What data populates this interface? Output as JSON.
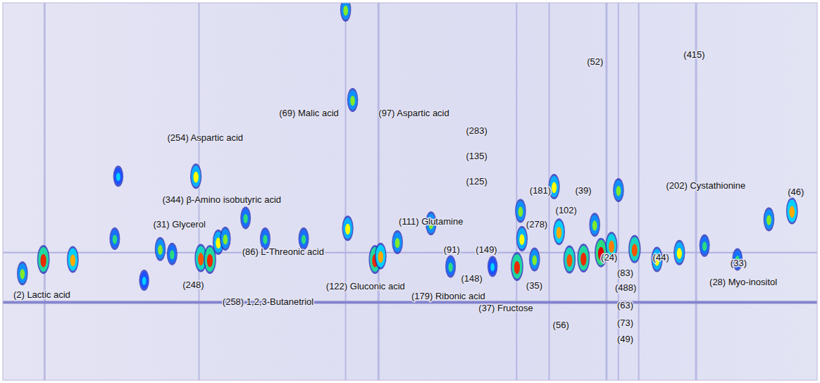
{
  "chart_data": {
    "type": "scatter",
    "tick_labels": false,
    "grid": false,
    "xlim": [
      0,
      1164
    ],
    "ylim": [
      544,
      0
    ],
    "zlim": [
      0,
      1
    ],
    "x": [
      58,
      100,
      28,
      160,
      202,
      225,
      242,
      283,
      296,
      308,
      318,
      276,
      347,
      375,
      430,
      493,
      500,
      490,
      532,
      540,
      564,
      612,
      735,
      742,
      740,
      788,
      795,
      810,
      830,
      846,
      855,
      870,
      880,
      903,
      935,
      967,
      1003,
      1050,
      1095,
      1128,
      165,
      640,
      700,
      760
    ],
    "values": [
      370,
      370,
      390,
      340,
      400,
      355,
      362,
      368,
      370,
      345,
      340,
      250,
      310,
      340,
      340,
      325,
      140,
      10,
      370,
      365,
      345,
      318,
      380,
      340,
      300,
      265,
      330,
      370,
      368,
      320,
      360,
      350,
      270,
      355,
      370,
      360,
      350,
      370,
      312,
      300,
      250,
      380,
      380,
      370
    ],
    "intensity": [
      0.95,
      0.8,
      0.6,
      0.5,
      0.4,
      0.6,
      0.5,
      0.9,
      0.95,
      0.7,
      0.6,
      0.7,
      0.5,
      0.5,
      0.5,
      0.7,
      0.6,
      0.6,
      0.95,
      0.8,
      0.6,
      0.6,
      0.95,
      0.7,
      0.6,
      0.7,
      0.8,
      0.9,
      0.95,
      0.6,
      1.0,
      0.85,
      0.6,
      0.9,
      0.7,
      0.7,
      0.5,
      0.5,
      0.6,
      0.8,
      0.4,
      0.5,
      0.4,
      0.6
    ],
    "annotations": [
      {
        "text": "(2) Lactic acid",
        "x": 15,
        "y": 422
      },
      {
        "text": "(31) Glycerol",
        "x": 215,
        "y": 320
      },
      {
        "text": "(254) Aspartic acid",
        "x": 235,
        "y": 195
      },
      {
        "text": "(344) β-Amino isobutyric acid",
        "x": 228,
        "y": 285
      },
      {
        "text": "(248)",
        "x": 257,
        "y": 408
      },
      {
        "text": "(258) 1,2,3-Butanetriol",
        "x": 314,
        "y": 432
      },
      {
        "text": "(86) L-Threonic acid",
        "x": 342,
        "y": 360
      },
      {
        "text": "(69) Malic acid",
        "x": 395,
        "y": 160
      },
      {
        "text": "(97) Aspartic acid",
        "x": 537,
        "y": 160
      },
      {
        "text": "(111) Glutamine",
        "x": 566,
        "y": 316
      },
      {
        "text": "(122) Gluconic acid",
        "x": 462,
        "y": 410
      },
      {
        "text": "(91)",
        "x": 630,
        "y": 357
      },
      {
        "text": "(149)",
        "x": 676,
        "y": 357
      },
      {
        "text": "(148)",
        "x": 655,
        "y": 398
      },
      {
        "text": "(179) Ribonic acid",
        "x": 584,
        "y": 424
      },
      {
        "text": "(283)",
        "x": 662,
        "y": 185
      },
      {
        "text": "(135)",
        "x": 662,
        "y": 222
      },
      {
        "text": "(125)",
        "x": 662,
        "y": 258
      },
      {
        "text": "(181)",
        "x": 753,
        "y": 272
      },
      {
        "text": "(39)",
        "x": 818,
        "y": 272
      },
      {
        "text": "(102)",
        "x": 790,
        "y": 300
      },
      {
        "text": "(278)",
        "x": 748,
        "y": 320
      },
      {
        "text": "(35)",
        "x": 748,
        "y": 409
      },
      {
        "text": "(37) Fructose",
        "x": 680,
        "y": 441
      },
      {
        "text": "(56)",
        "x": 786,
        "y": 465
      },
      {
        "text": "(52)",
        "x": 835,
        "y": 86
      },
      {
        "text": "(415)",
        "x": 973,
        "y": 76
      },
      {
        "text": "(24)",
        "x": 855,
        "y": 368
      },
      {
        "text": "(83)",
        "x": 878,
        "y": 390
      },
      {
        "text": "(488)",
        "x": 875,
        "y": 412
      },
      {
        "text": "(63)",
        "x": 878,
        "y": 437
      },
      {
        "text": "(73)",
        "x": 878,
        "y": 462
      },
      {
        "text": "(49)",
        "x": 878,
        "y": 486
      },
      {
        "text": "(202) Cystathionine",
        "x": 948,
        "y": 264
      },
      {
        "text": "(46)",
        "x": 1122,
        "y": 274
      },
      {
        "text": "(44)",
        "x": 929,
        "y": 368
      },
      {
        "text": "(33)",
        "x": 1040,
        "y": 376
      },
      {
        "text": "(28) Myo-inositol",
        "x": 1010,
        "y": 404
      }
    ]
  }
}
